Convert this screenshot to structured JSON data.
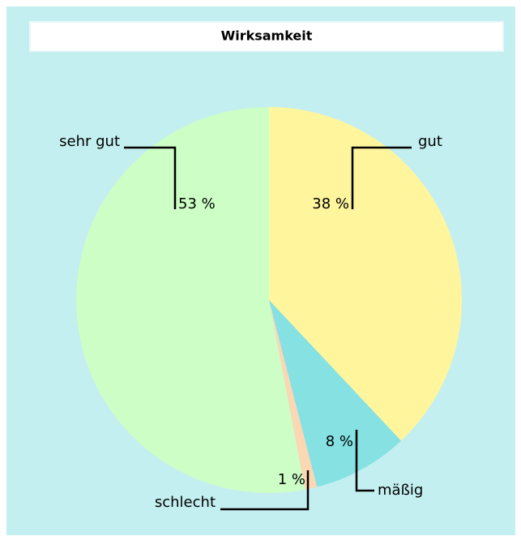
{
  "chart_data": {
    "type": "pie",
    "title": "Wirksamkeit",
    "categories": [
      "gut",
      "mäßig",
      "schlecht",
      "sehr gut"
    ],
    "values": [
      38,
      8,
      1,
      53
    ],
    "value_labels": [
      "38 %",
      "8 %",
      "1 %",
      "53 %"
    ],
    "colors": [
      "#fff59d",
      "#85e1e2",
      "#fcd7b3",
      "#ccfec6"
    ]
  }
}
